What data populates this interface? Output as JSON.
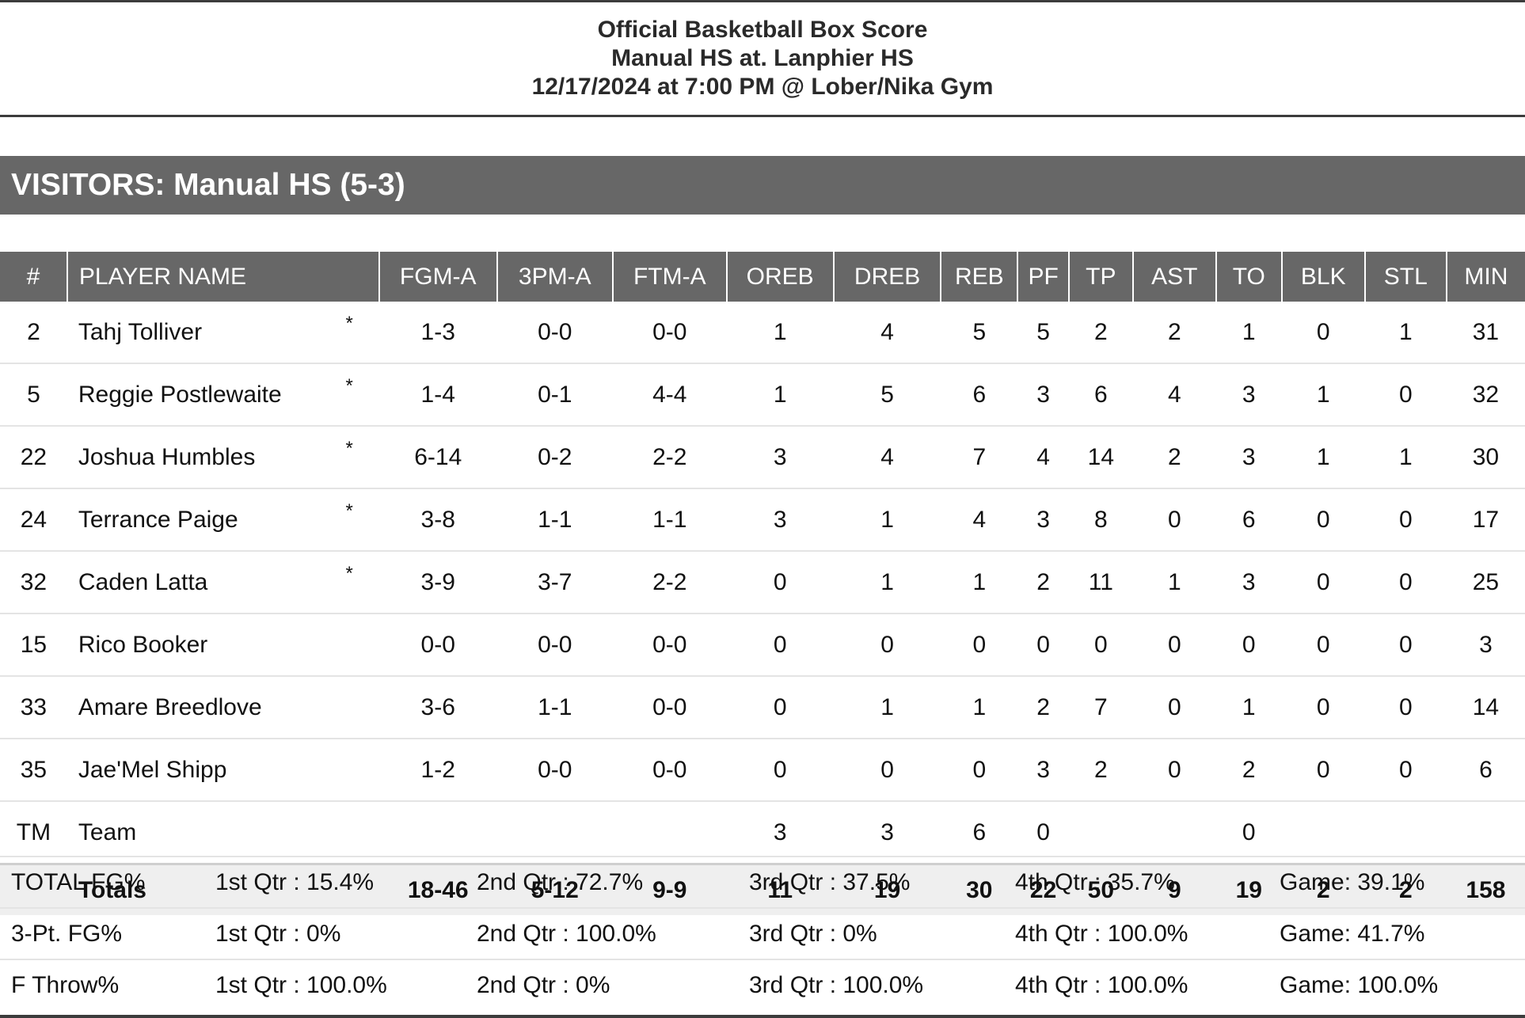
{
  "header": {
    "line1": "Official Basketball Box Score",
    "line2": "Manual HS at. Lanphier HS",
    "line3": "12/17/2024 at 7:00 PM @ Lober/Nika Gym"
  },
  "team_bar": "VISITORS: Manual HS (5-3)",
  "columns": [
    "#",
    "PLAYER NAME",
    "FGM-A",
    "3PM-A",
    "FTM-A",
    "OREB",
    "DREB",
    "REB",
    "PF",
    "TP",
    "AST",
    "TO",
    "BLK",
    "STL",
    "MIN"
  ],
  "players": [
    {
      "num": "2",
      "name": "Tahj Tolliver",
      "starter": "*",
      "fgma": "1-3",
      "tpma": "0-0",
      "ftma": "0-0",
      "oreb": "1",
      "dreb": "4",
      "reb": "5",
      "pf": "5",
      "tp": "2",
      "ast": "2",
      "to": "1",
      "blk": "0",
      "stl": "1",
      "min": "31"
    },
    {
      "num": "5",
      "name": "Reggie Postlewaite",
      "starter": "*",
      "fgma": "1-4",
      "tpma": "0-1",
      "ftma": "4-4",
      "oreb": "1",
      "dreb": "5",
      "reb": "6",
      "pf": "3",
      "tp": "6",
      "ast": "4",
      "to": "3",
      "blk": "1",
      "stl": "0",
      "min": "32"
    },
    {
      "num": "22",
      "name": "Joshua Humbles",
      "starter": "*",
      "fgma": "6-14",
      "tpma": "0-2",
      "ftma": "2-2",
      "oreb": "3",
      "dreb": "4",
      "reb": "7",
      "pf": "4",
      "tp": "14",
      "ast": "2",
      "to": "3",
      "blk": "1",
      "stl": "1",
      "min": "30"
    },
    {
      "num": "24",
      "name": "Terrance Paige",
      "starter": "*",
      "fgma": "3-8",
      "tpma": "1-1",
      "ftma": "1-1",
      "oreb": "3",
      "dreb": "1",
      "reb": "4",
      "pf": "3",
      "tp": "8",
      "ast": "0",
      "to": "6",
      "blk": "0",
      "stl": "0",
      "min": "17"
    },
    {
      "num": "32",
      "name": "Caden Latta",
      "starter": "*",
      "fgma": "3-9",
      "tpma": "3-7",
      "ftma": "2-2",
      "oreb": "0",
      "dreb": "1",
      "reb": "1",
      "pf": "2",
      "tp": "11",
      "ast": "1",
      "to": "3",
      "blk": "0",
      "stl": "0",
      "min": "25"
    },
    {
      "num": "15",
      "name": "Rico Booker",
      "starter": "",
      "fgma": "0-0",
      "tpma": "0-0",
      "ftma": "0-0",
      "oreb": "0",
      "dreb": "0",
      "reb": "0",
      "pf": "0",
      "tp": "0",
      "ast": "0",
      "to": "0",
      "blk": "0",
      "stl": "0",
      "min": "3"
    },
    {
      "num": "33",
      "name": "Amare Breedlove",
      "starter": "",
      "fgma": "3-6",
      "tpma": "1-1",
      "ftma": "0-0",
      "oreb": "0",
      "dreb": "1",
      "reb": "1",
      "pf": "2",
      "tp": "7",
      "ast": "0",
      "to": "1",
      "blk": "0",
      "stl": "0",
      "min": "14"
    },
    {
      "num": "35",
      "name": "Jae'Mel Shipp",
      "starter": "",
      "fgma": "1-2",
      "tpma": "0-0",
      "ftma": "0-0",
      "oreb": "0",
      "dreb": "0",
      "reb": "0",
      "pf": "3",
      "tp": "2",
      "ast": "0",
      "to": "2",
      "blk": "0",
      "stl": "0",
      "min": "6"
    },
    {
      "num": "TM",
      "name": "Team",
      "starter": "",
      "fgma": "",
      "tpma": "",
      "ftma": "",
      "oreb": "3",
      "dreb": "3",
      "reb": "6",
      "pf": "0",
      "tp": "",
      "ast": "",
      "to": "0",
      "blk": "",
      "stl": "",
      "min": ""
    }
  ],
  "totals": {
    "label": "Totals",
    "fgma": "18-46",
    "tpma": "5-12",
    "ftma": "9-9",
    "oreb": "11",
    "dreb": "19",
    "reb": "30",
    "pf": "22",
    "tp": "50",
    "ast": "9",
    "to": "19",
    "blk": "2",
    "stl": "2",
    "min": "158"
  },
  "percentages": [
    {
      "label": "TOTAL FG%",
      "q1": "1st Qtr : 15.4%",
      "q2": "2nd Qtr : 72.7%",
      "q3": "3rd Qtr : 37.5%",
      "q4": "4th Qtr : 35.7%",
      "game": "Game: 39.1%"
    },
    {
      "label": "3-Pt. FG%",
      "q1": "1st Qtr : 0%",
      "q2": "2nd Qtr : 100.0%",
      "q3": "3rd Qtr : 0%",
      "q4": "4th Qtr : 100.0%",
      "game": "Game: 41.7%"
    },
    {
      "label": "F Throw%",
      "q1": "1st Qtr : 100.0%",
      "q2": "2nd Qtr : 0%",
      "q3": "3rd Qtr : 100.0%",
      "q4": "4th Qtr : 100.0%",
      "game": "Game: 100.0%"
    }
  ]
}
